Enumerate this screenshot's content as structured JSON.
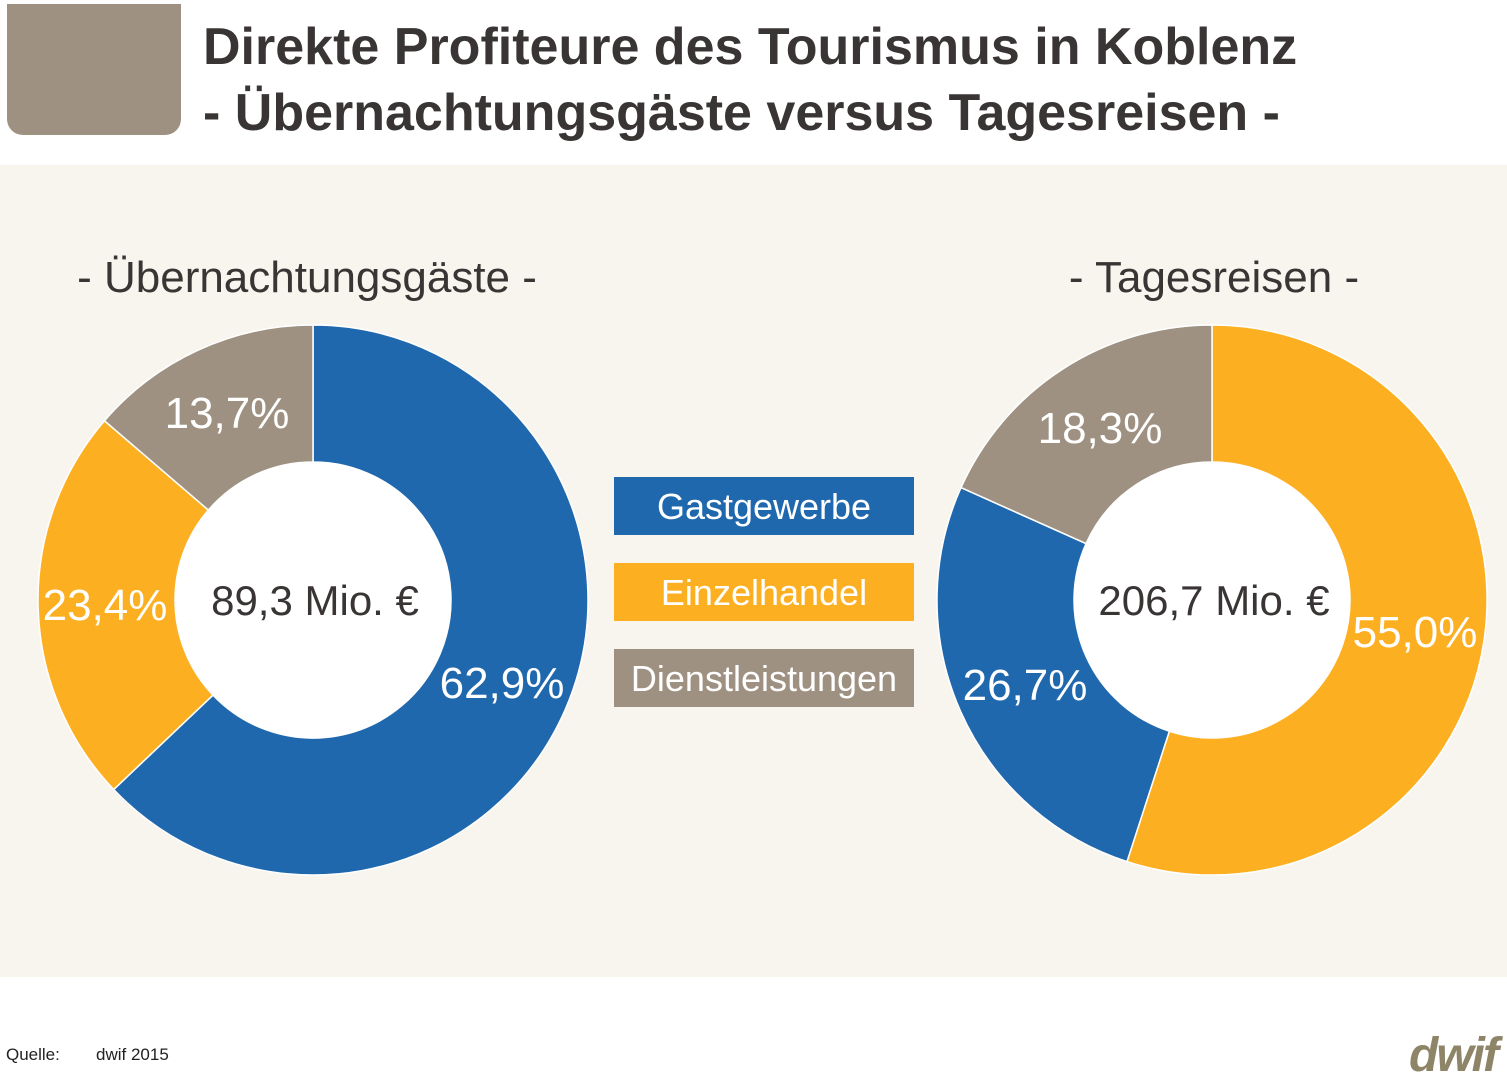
{
  "header": {
    "title_line1": "Direkte Profiteure des Tourismus in Koblenz",
    "title_line2": "- Übernachtungsgäste versus Tagesreisen -"
  },
  "chart_data": [
    {
      "type": "pie",
      "donut": true,
      "title": "- Übernachtungsgäste -",
      "center_label": "89,3 Mio. €",
      "categories": [
        "Gastgewerbe",
        "Einzelhandel",
        "Dienstleistungen"
      ],
      "values": [
        62.9,
        23.4,
        13.7
      ],
      "labels": [
        "62,9%",
        "23,4%",
        "13,7%"
      ],
      "colors": [
        "#2068ad",
        "#fdaf22",
        "#9e9181"
      ]
    },
    {
      "type": "pie",
      "donut": true,
      "title": "- Tagesreisen -",
      "center_label": "206,7 Mio. €",
      "categories": [
        "Einzelhandel",
        "Gastgewerbe",
        "Dienstleistungen"
      ],
      "values": [
        55.0,
        26.7,
        18.3
      ],
      "labels": [
        "55,0%",
        "26,7%",
        "18,3%"
      ],
      "colors": [
        "#fdaf22",
        "#2068ad",
        "#9e9181"
      ]
    }
  ],
  "legend": {
    "placement": "center",
    "items": [
      {
        "label": "Gastgewerbe",
        "color": "#2068ad"
      },
      {
        "label": "Einzelhandel",
        "color": "#fdaf22"
      },
      {
        "label": "Dienstleistungen",
        "color": "#9e9181"
      }
    ]
  },
  "footer": {
    "source_label": "Quelle:",
    "source_value": "dwif 2015",
    "logo_text": "dwif"
  }
}
